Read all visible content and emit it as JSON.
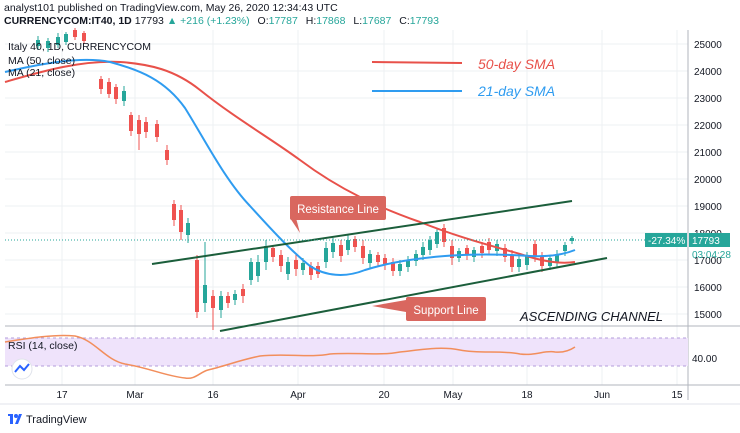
{
  "header": {
    "line1": "analyst101 published on TradingView.com, May 26, 2020 12:34:43 UTC",
    "symbol": "CURRENCYCOM:IT40, 1D",
    "last": "17793",
    "change": "+216 (+1.23%)",
    "open_label": "O:",
    "open": "17787",
    "high_label": "H:",
    "high": "17868",
    "low_label": "L:",
    "low": "17687",
    "close_label": "C:",
    "close": "17793"
  },
  "legend": {
    "title": "Italy 40, 1D, CURRENCYCOM",
    "ma50": "MA (50, close)",
    "ma21": "MA (21, close)"
  },
  "price_axis": [
    "25000",
    "24000",
    "23000",
    "22000",
    "21000",
    "20000",
    "19000",
    "18000",
    "17000",
    "16000",
    "15000"
  ],
  "price_badge": "-27.34%",
  "price_badge_value": "17793",
  "countdown": "03:04:28",
  "rsi": {
    "label": "RSI (14, close)",
    "level": "40.00"
  },
  "time_axis": [
    "17",
    "Mar",
    "16",
    "Apr",
    "20",
    "May",
    "18",
    "Jun",
    "15"
  ],
  "annotations": {
    "sma50": "50-day SMA",
    "sma21": "21-day SMA",
    "resistance": "Resistance Line",
    "support": "Support Line",
    "channel": "ASCENDING CHANNEL"
  },
  "colors": {
    "up": "#26a69a",
    "down": "#ef5350",
    "sma50": "#e8514a",
    "sma21": "#2f9cf0",
    "rsi": "#f28e5c"
  },
  "footer": {
    "brand": "TradingView"
  }
}
